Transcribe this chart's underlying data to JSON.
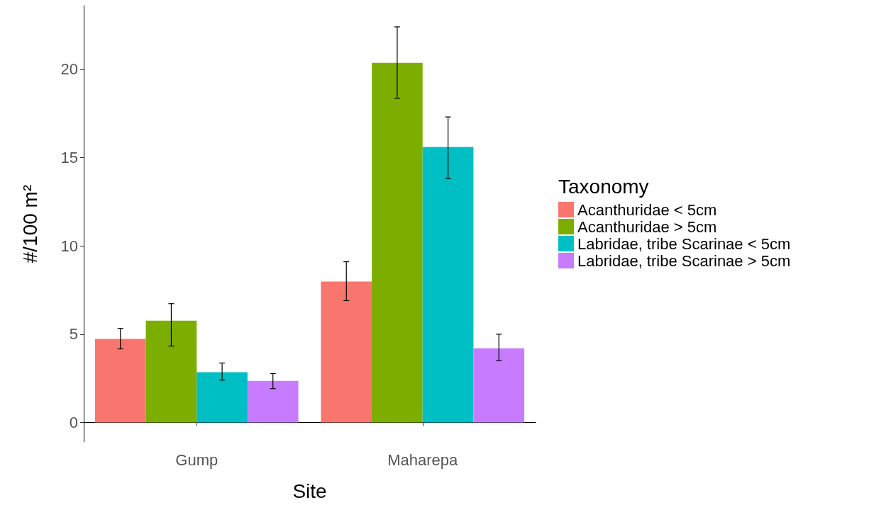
{
  "chart_data": {
    "type": "bar",
    "xlabel": "Site",
    "ylabel": "#/100 m²",
    "legend_title": "Taxonomy",
    "categories": [
      "Gump",
      "Maharepa"
    ],
    "series": [
      {
        "name": "Acanthuridae < 5cm",
        "color": "#f8766d",
        "values": [
          4.73,
          7.98
        ],
        "errors": [
          [
            4.17,
            5.33
          ],
          [
            6.9,
            9.1
          ]
        ]
      },
      {
        "name": "Acanthuridae > 5cm",
        "color": "#7cae00",
        "values": [
          5.77,
          20.36
        ],
        "errors": [
          [
            4.33,
            6.73
          ],
          [
            18.36,
            22.4
          ]
        ]
      },
      {
        "name": "Labridae, tribe Scarinae < 5cm",
        "color": "#00bfc4",
        "values": [
          2.85,
          15.6
        ],
        "errors": [
          [
            2.4,
            3.37
          ],
          [
            13.8,
            17.3
          ]
        ]
      },
      {
        "name": "Labridae, tribe Scarinae > 5cm",
        "color": "#c77cff",
        "values": [
          2.36,
          4.2
        ],
        "errors": [
          [
            1.92,
            2.77
          ],
          [
            3.5,
            5.0
          ]
        ]
      }
    ],
    "ylim": [
      -1.1,
      23.6
    ],
    "yticks": [
      0,
      5,
      10,
      15,
      20
    ],
    "grid": false,
    "legend": "right"
  }
}
